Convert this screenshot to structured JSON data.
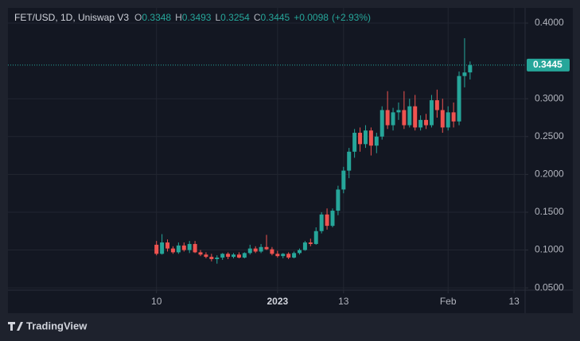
{
  "chart_data": {
    "type": "candlestick",
    "title": "FET/USD, 1D, Uniswap V3",
    "ohlc_labels": [
      "O",
      "H",
      "L",
      "C"
    ],
    "change": {
      "value": 0.0098,
      "label": "+0.0098"
    },
    "change_pct": {
      "value": 2.93,
      "label": "(+2.93%)"
    },
    "up_color": "#26a69a",
    "down_color": "#ef5350",
    "x": [
      "2022-12-10",
      "2022-12-11",
      "2022-12-12",
      "2022-12-13",
      "2022-12-14",
      "2022-12-15",
      "2022-12-16",
      "2022-12-17",
      "2022-12-18",
      "2022-12-19",
      "2022-12-20",
      "2022-12-21",
      "2022-12-22",
      "2022-12-23",
      "2022-12-24",
      "2022-12-25",
      "2022-12-26",
      "2022-12-27",
      "2022-12-28",
      "2022-12-29",
      "2022-12-30",
      "2022-12-31",
      "2023-01-01",
      "2023-01-02",
      "2023-01-03",
      "2023-01-04",
      "2023-01-05",
      "2023-01-06",
      "2023-01-07",
      "2023-01-08",
      "2023-01-09",
      "2023-01-10",
      "2023-01-11",
      "2023-01-12",
      "2023-01-13",
      "2023-01-14",
      "2023-01-15",
      "2023-01-16",
      "2023-01-17",
      "2023-01-18",
      "2023-01-19",
      "2023-01-20",
      "2023-01-21",
      "2023-01-22",
      "2023-01-23",
      "2023-01-24",
      "2023-01-25",
      "2023-01-26",
      "2023-01-27",
      "2023-01-28",
      "2023-01-29",
      "2023-01-30",
      "2023-01-31",
      "2023-02-01",
      "2023-02-02",
      "2023-02-03",
      "2023-02-04",
      "2023-02-05"
    ],
    "open": [
      0.107,
      0.095,
      0.11,
      0.102,
      0.097,
      0.106,
      0.1,
      0.108,
      0.097,
      0.094,
      0.091,
      0.088,
      0.09,
      0.095,
      0.091,
      0.094,
      0.09,
      0.096,
      0.102,
      0.098,
      0.104,
      0.101,
      0.095,
      0.092,
      0.095,
      0.09,
      0.096,
      0.1,
      0.11,
      0.108,
      0.125,
      0.147,
      0.132,
      0.152,
      0.18,
      0.205,
      0.23,
      0.255,
      0.24,
      0.258,
      0.238,
      0.25,
      0.285,
      0.265,
      0.282,
      0.285,
      0.265,
      0.29,
      0.262,
      0.272,
      0.265,
      0.298,
      0.285,
      0.262,
      0.282,
      0.27,
      0.33,
      0.3348
    ],
    "high": [
      0.112,
      0.121,
      0.114,
      0.105,
      0.11,
      0.11,
      0.112,
      0.112,
      0.1,
      0.097,
      0.095,
      0.093,
      0.096,
      0.097,
      0.096,
      0.097,
      0.097,
      0.107,
      0.105,
      0.108,
      0.12,
      0.104,
      0.099,
      0.096,
      0.097,
      0.098,
      0.102,
      0.112,
      0.115,
      0.13,
      0.15,
      0.155,
      0.155,
      0.185,
      0.21,
      0.235,
      0.26,
      0.262,
      0.265,
      0.262,
      0.255,
      0.29,
      0.31,
      0.288,
      0.295,
      0.31,
      0.3,
      0.305,
      0.278,
      0.28,
      0.305,
      0.312,
      0.3,
      0.29,
      0.295,
      0.336,
      0.38,
      0.3493
    ],
    "low": [
      0.093,
      0.094,
      0.098,
      0.095,
      0.095,
      0.098,
      0.096,
      0.096,
      0.092,
      0.089,
      0.085,
      0.082,
      0.087,
      0.088,
      0.089,
      0.089,
      0.089,
      0.094,
      0.096,
      0.096,
      0.1,
      0.093,
      0.09,
      0.089,
      0.088,
      0.089,
      0.094,
      0.099,
      0.105,
      0.107,
      0.122,
      0.127,
      0.13,
      0.146,
      0.175,
      0.195,
      0.222,
      0.23,
      0.235,
      0.225,
      0.228,
      0.246,
      0.26,
      0.258,
      0.272,
      0.26,
      0.262,
      0.258,
      0.258,
      0.26,
      0.262,
      0.275,
      0.255,
      0.258,
      0.262,
      0.265,
      0.315,
      0.3254
    ],
    "close": [
      0.095,
      0.11,
      0.102,
      0.097,
      0.106,
      0.1,
      0.108,
      0.097,
      0.094,
      0.091,
      0.088,
      0.09,
      0.095,
      0.091,
      0.094,
      0.09,
      0.096,
      0.102,
      0.098,
      0.104,
      0.101,
      0.095,
      0.092,
      0.095,
      0.09,
      0.096,
      0.1,
      0.11,
      0.108,
      0.125,
      0.147,
      0.132,
      0.152,
      0.18,
      0.205,
      0.23,
      0.255,
      0.24,
      0.258,
      0.238,
      0.25,
      0.285,
      0.265,
      0.282,
      0.285,
      0.265,
      0.29,
      0.262,
      0.272,
      0.265,
      0.298,
      0.285,
      0.262,
      0.282,
      0.27,
      0.33,
      0.3347,
      0.3445
    ],
    "xlim": [
      "2022-11-13",
      "2023-02-15"
    ],
    "xticks": [
      {
        "value": "2022-12-10",
        "label": "10"
      },
      {
        "value": "2023-01-01",
        "label": "2023"
      },
      {
        "value": "2023-01-13",
        "label": "13"
      },
      {
        "value": "2023-02-01",
        "label": "Feb"
      },
      {
        "value": "2023-02-13",
        "label": "13"
      }
    ],
    "ylim": [
      0.047,
      0.42
    ],
    "yticks": [
      {
        "value": 0.05,
        "label": "0.0500"
      },
      {
        "value": 0.1,
        "label": "0.1000"
      },
      {
        "value": 0.15,
        "label": "0.1500"
      },
      {
        "value": 0.2,
        "label": "0.2000"
      },
      {
        "value": 0.25,
        "label": "0.2500"
      },
      {
        "value": 0.3,
        "label": "0.3000"
      },
      {
        "value": 0.4,
        "label": "0.4000"
      }
    ],
    "grid": true
  },
  "footer": {
    "brand": "TradingView"
  }
}
